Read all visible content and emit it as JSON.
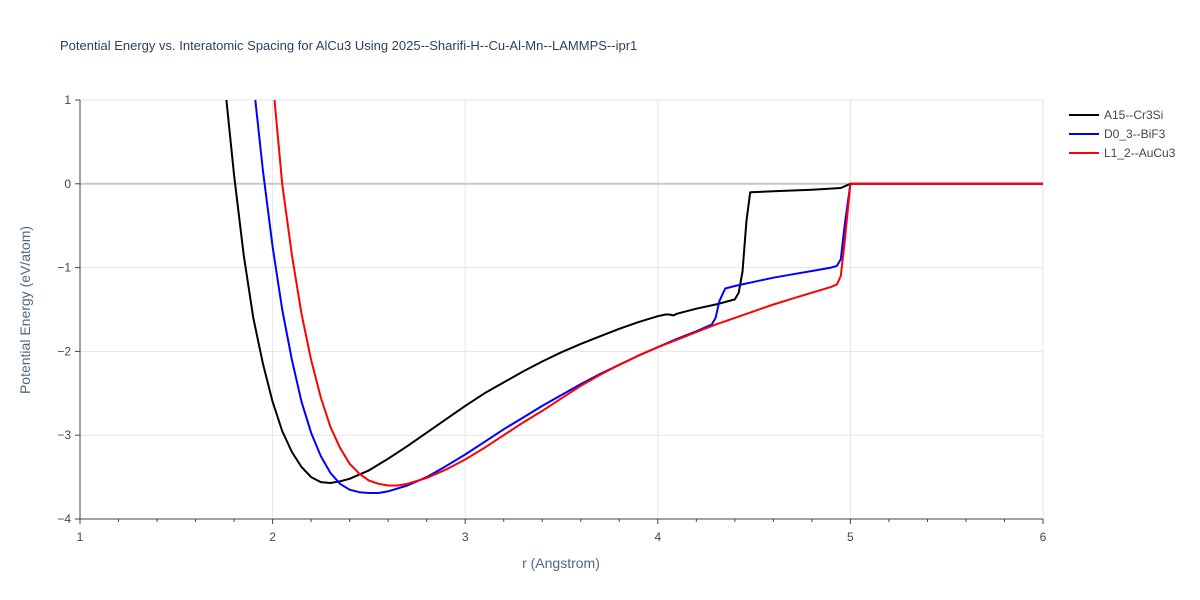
{
  "chart_data": {
    "type": "line",
    "title": "Potential Energy vs. Interatomic Spacing for AlCu3 Using 2025--Sharifi-H--Cu-Al-Mn--LAMMPS--ipr1",
    "xlabel": "r (Angstrom)",
    "ylabel": "Potential Energy (eV/atom)",
    "xlim": [
      1,
      6
    ],
    "ylim": [
      -4,
      1
    ],
    "xticks": [
      "1",
      "2",
      "3",
      "4",
      "5",
      "6"
    ],
    "yticks": [
      "1",
      "0",
      "−1",
      "−2",
      "−3",
      "−4"
    ],
    "grid": true,
    "legend_position": "top-right",
    "series": [
      {
        "name": "A15--Cr3Si",
        "color": "#000000",
        "x": [
          1.76,
          1.8,
          1.85,
          1.9,
          1.95,
          2.0,
          2.05,
          2.1,
          2.15,
          2.2,
          2.25,
          2.3,
          2.35,
          2.4,
          2.45,
          2.5,
          2.6,
          2.7,
          2.8,
          2.9,
          3.0,
          3.1,
          3.2,
          3.3,
          3.4,
          3.5,
          3.6,
          3.7,
          3.8,
          3.9,
          4.0,
          4.04,
          4.06,
          4.08,
          4.1,
          4.2,
          4.3,
          4.35,
          4.4,
          4.42,
          4.44,
          4.46,
          4.48,
          4.6,
          4.7,
          4.8,
          4.95,
          5.0,
          5.5,
          6.0
        ],
        "y": [
          1.0,
          0.1,
          -0.85,
          -1.6,
          -2.15,
          -2.6,
          -2.95,
          -3.2,
          -3.38,
          -3.5,
          -3.56,
          -3.57,
          -3.55,
          -3.52,
          -3.47,
          -3.42,
          -3.28,
          -3.13,
          -2.97,
          -2.81,
          -2.65,
          -2.5,
          -2.37,
          -2.24,
          -2.12,
          -2.01,
          -1.91,
          -1.82,
          -1.73,
          -1.65,
          -1.58,
          -1.56,
          -1.56,
          -1.57,
          -1.55,
          -1.49,
          -1.44,
          -1.41,
          -1.38,
          -1.3,
          -1.05,
          -0.45,
          -0.1,
          -0.09,
          -0.08,
          -0.07,
          -0.05,
          0.0,
          0.0,
          0.0
        ]
      },
      {
        "name": "D0_3--BiF3",
        "color": "#0000ff",
        "x": [
          1.91,
          1.95,
          2.0,
          2.05,
          2.1,
          2.15,
          2.2,
          2.25,
          2.3,
          2.35,
          2.4,
          2.45,
          2.5,
          2.55,
          2.6,
          2.7,
          2.8,
          2.9,
          3.0,
          3.1,
          3.2,
          3.3,
          3.4,
          3.5,
          3.6,
          3.7,
          3.8,
          3.9,
          4.0,
          4.1,
          4.2,
          4.28,
          4.3,
          4.32,
          4.35,
          4.4,
          4.5,
          4.6,
          4.7,
          4.8,
          4.9,
          4.93,
          4.95,
          4.97,
          5.0,
          5.5,
          6.0
        ],
        "y": [
          1.0,
          0.15,
          -0.75,
          -1.5,
          -2.1,
          -2.6,
          -2.97,
          -3.25,
          -3.45,
          -3.58,
          -3.65,
          -3.68,
          -3.69,
          -3.69,
          -3.67,
          -3.6,
          -3.5,
          -3.37,
          -3.23,
          -3.08,
          -2.93,
          -2.79,
          -2.65,
          -2.52,
          -2.39,
          -2.27,
          -2.16,
          -2.05,
          -1.95,
          -1.85,
          -1.76,
          -1.68,
          -1.6,
          -1.4,
          -1.25,
          -1.22,
          -1.17,
          -1.12,
          -1.08,
          -1.04,
          -1.0,
          -0.98,
          -0.9,
          -0.5,
          0.0,
          0.0,
          0.0
        ]
      },
      {
        "name": "L1_2--AuCu3",
        "color": "#ff0000",
        "x": [
          2.01,
          2.05,
          2.1,
          2.15,
          2.2,
          2.25,
          2.3,
          2.35,
          2.4,
          2.45,
          2.5,
          2.55,
          2.6,
          2.65,
          2.7,
          2.8,
          2.9,
          3.0,
          3.1,
          3.2,
          3.3,
          3.4,
          3.5,
          3.6,
          3.7,
          3.8,
          3.9,
          4.0,
          4.1,
          4.2,
          4.3,
          4.4,
          4.5,
          4.6,
          4.7,
          4.8,
          4.9,
          4.93,
          4.95,
          4.97,
          5.0,
          5.5,
          6.0
        ],
        "y": [
          1.0,
          0.0,
          -0.85,
          -1.55,
          -2.1,
          -2.55,
          -2.9,
          -3.15,
          -3.34,
          -3.46,
          -3.54,
          -3.58,
          -3.6,
          -3.6,
          -3.58,
          -3.51,
          -3.41,
          -3.29,
          -3.15,
          -3.0,
          -2.85,
          -2.71,
          -2.56,
          -2.41,
          -2.28,
          -2.16,
          -2.05,
          -1.95,
          -1.86,
          -1.77,
          -1.68,
          -1.6,
          -1.52,
          -1.44,
          -1.37,
          -1.3,
          -1.23,
          -1.2,
          -1.1,
          -0.7,
          0.0,
          0.0,
          0.0
        ]
      }
    ]
  }
}
